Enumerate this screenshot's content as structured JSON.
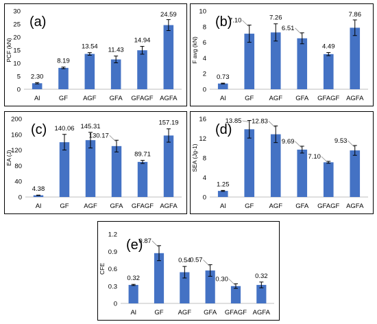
{
  "colors": {
    "bar": "#4472c4",
    "axis": "#bfbfbf",
    "text": "#000000",
    "errorbar": "#000000",
    "leader": "#8c8c8c"
  },
  "chart_data": [
    {
      "type": "bar",
      "panel_label": "(a)",
      "ylabel": "PCF (kN)",
      "xlabel": "",
      "title": "",
      "ylim": [
        0,
        30
      ],
      "yticks": [
        0,
        5,
        10,
        15,
        20,
        25,
        30
      ],
      "grid": false,
      "categories": [
        "Al",
        "GF",
        "AGF",
        "GFA",
        "GFAGF",
        "AGFA"
      ],
      "values": [
        2.3,
        8.19,
        13.54,
        11.43,
        14.94,
        24.59
      ],
      "errors": [
        0.25,
        0.3,
        0.5,
        1.3,
        1.5,
        2.1
      ],
      "value_labels": [
        "2.30",
        "8.19",
        "13.54",
        "11.43",
        "14.94",
        "24.59"
      ]
    },
    {
      "type": "bar",
      "panel_label": "(b)",
      "ylabel": "F avg (kN)",
      "xlabel": "",
      "title": "",
      "ylim": [
        0,
        10
      ],
      "yticks": [
        0,
        2,
        4,
        6,
        8,
        10
      ],
      "grid": false,
      "categories": [
        "Al",
        "GF",
        "AGF",
        "GFA",
        "GFAGF",
        "AGFA"
      ],
      "values": [
        0.73,
        7.1,
        7.26,
        6.51,
        4.49,
        7.86
      ],
      "errors": [
        0.05,
        1.1,
        1.1,
        0.7,
        0.2,
        1.0
      ],
      "value_labels": [
        "0.73",
        "7.10",
        "7.26",
        "6.51",
        "4.49",
        "7.86"
      ]
    },
    {
      "type": "bar",
      "panel_label": "(c)",
      "ylabel": "EA (J)",
      "xlabel": "",
      "title": "",
      "ylim": [
        0,
        200
      ],
      "yticks": [
        0,
        40,
        80,
        120,
        160,
        200
      ],
      "grid": false,
      "categories": [
        "Al",
        "GF",
        "AGF",
        "GFA",
        "GFAGF",
        "AGFA"
      ],
      "values": [
        4.38,
        140.06,
        145.31,
        130.17,
        89.71,
        157.19
      ],
      "errors": [
        0.5,
        20,
        20,
        15,
        4,
        17
      ],
      "value_labels": [
        "4.38",
        "140.06",
        "145.31",
        "130.17",
        "89.71",
        "157.19"
      ]
    },
    {
      "type": "bar",
      "panel_label": "(d)",
      "ylabel": "SEA (Jg-1)",
      "xlabel": "",
      "title": "",
      "ylim": [
        0,
        16
      ],
      "yticks": [
        0,
        4,
        8,
        12,
        16
      ],
      "grid": false,
      "categories": [
        "Al",
        "GF",
        "AGF",
        "GFA",
        "GFAGF",
        "AGFA"
      ],
      "values": [
        1.25,
        13.85,
        12.83,
        9.69,
        7.1,
        9.53
      ],
      "errors": [
        0.1,
        1.8,
        1.7,
        0.7,
        0.2,
        1.0
      ],
      "value_labels": [
        "1.25",
        "13.85",
        "12.83",
        "9.69",
        "7.10",
        "9.53"
      ]
    },
    {
      "type": "bar",
      "panel_label": "(e)",
      "ylabel": "CFE",
      "xlabel": "",
      "title": "",
      "ylim": [
        0,
        1.2
      ],
      "yticks": [
        0,
        0.3,
        0.6,
        0.9,
        1.2
      ],
      "ytick_labels": [
        "0",
        "0.3",
        "0.6",
        "0.9",
        "1.2"
      ],
      "grid": false,
      "categories": [
        "Al",
        "GF",
        "AGF",
        "GFA",
        "GFAGF",
        "AGFA"
      ],
      "values": [
        0.32,
        0.87,
        0.54,
        0.57,
        0.3,
        0.32
      ],
      "errors": [
        0.01,
        0.13,
        0.1,
        0.1,
        0.04,
        0.05
      ],
      "value_labels": [
        "0.32",
        "0.87",
        "0.54",
        "0.57",
        "0.30",
        "0.32"
      ]
    }
  ]
}
